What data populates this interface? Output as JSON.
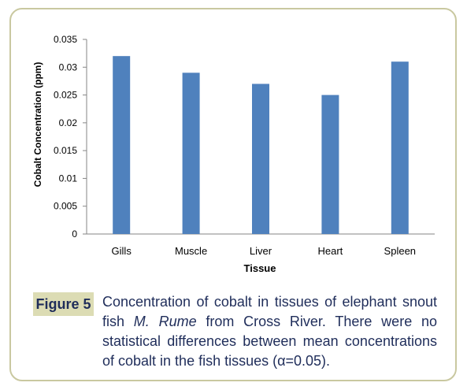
{
  "chart_data": {
    "type": "bar",
    "categories": [
      "Gills",
      "Muscle",
      "Liver",
      "Heart",
      "Spleen"
    ],
    "values": [
      0.032,
      0.029,
      0.027,
      0.025,
      0.031
    ],
    "title": "",
    "xlabel": "Tissue",
    "ylabel": "Cobalt Concentration (ppm)",
    "ylim": [
      0,
      0.035
    ],
    "yticks": [
      "0",
      "0.005",
      "0.01",
      "0.015",
      "0.02",
      "0.025",
      "0.03",
      "0.035"
    ],
    "bar_color": "#4f81bd",
    "grid": false,
    "legend": "none"
  },
  "caption": {
    "label": "Figure 5",
    "text_before": "Concentration of cobalt in tissues of elephant snout fish ",
    "species": "M. Rume",
    "text_after": " from Cross River. There were no statistical differences between mean concentrations of cobalt in the fish tissues (α=0.05)."
  },
  "colors": {
    "frame_border": "#c9c8a0",
    "label_bg": "#dcdcb4",
    "caption_text": "#1f2d5a"
  }
}
